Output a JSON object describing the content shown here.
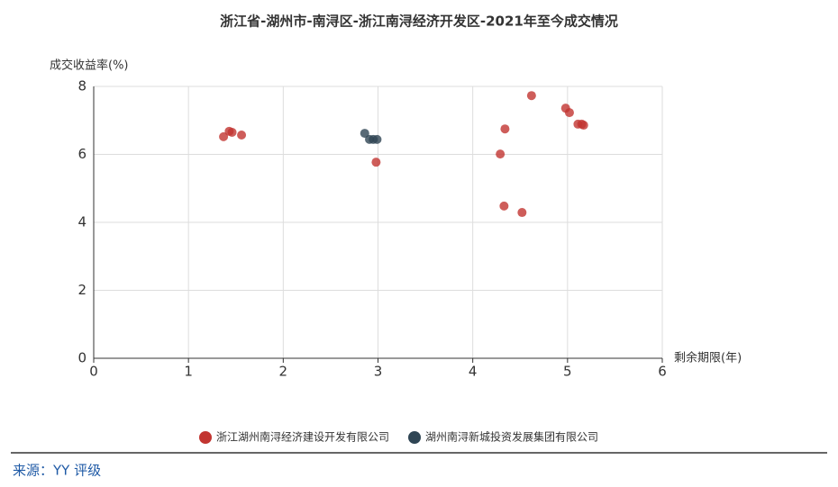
{
  "chart_data": {
    "type": "scatter",
    "title": "浙江省-湖州市-南浔区-浙江南浔经济开发区-2021年至今成交情况",
    "x_label": "剩余期限(年)",
    "y_label": "成交收益率(%)",
    "xlim": [
      0,
      6
    ],
    "xticks": [
      0,
      1,
      2,
      3,
      4,
      5,
      6
    ],
    "ylim": [
      0,
      8
    ],
    "yticks": [
      0,
      2,
      4,
      6,
      8
    ],
    "grid": true,
    "legend": "bottom",
    "series": [
      {
        "name": "浙江湖州南浔经济建设开发有限公司",
        "color": "#c23531",
        "x": [
          1.37,
          1.43,
          1.46,
          1.56,
          2.98,
          4.29,
          4.34,
          4.33,
          4.52,
          4.62,
          4.98,
          5.02,
          5.11,
          5.15,
          5.17
        ],
        "values": [
          6.52,
          6.68,
          6.65,
          6.57,
          5.77,
          6.01,
          6.75,
          4.48,
          4.29,
          7.73,
          7.36,
          7.23,
          6.89,
          6.89,
          6.86
        ]
      },
      {
        "name": "湖州南浔新城投资发展集团有限公司",
        "color": "#2f4554",
        "x": [
          2.86,
          2.91,
          2.95,
          2.99
        ],
        "values": [
          6.62,
          6.44,
          6.44,
          6.44
        ]
      }
    ]
  },
  "source": "来源：YY 评级"
}
